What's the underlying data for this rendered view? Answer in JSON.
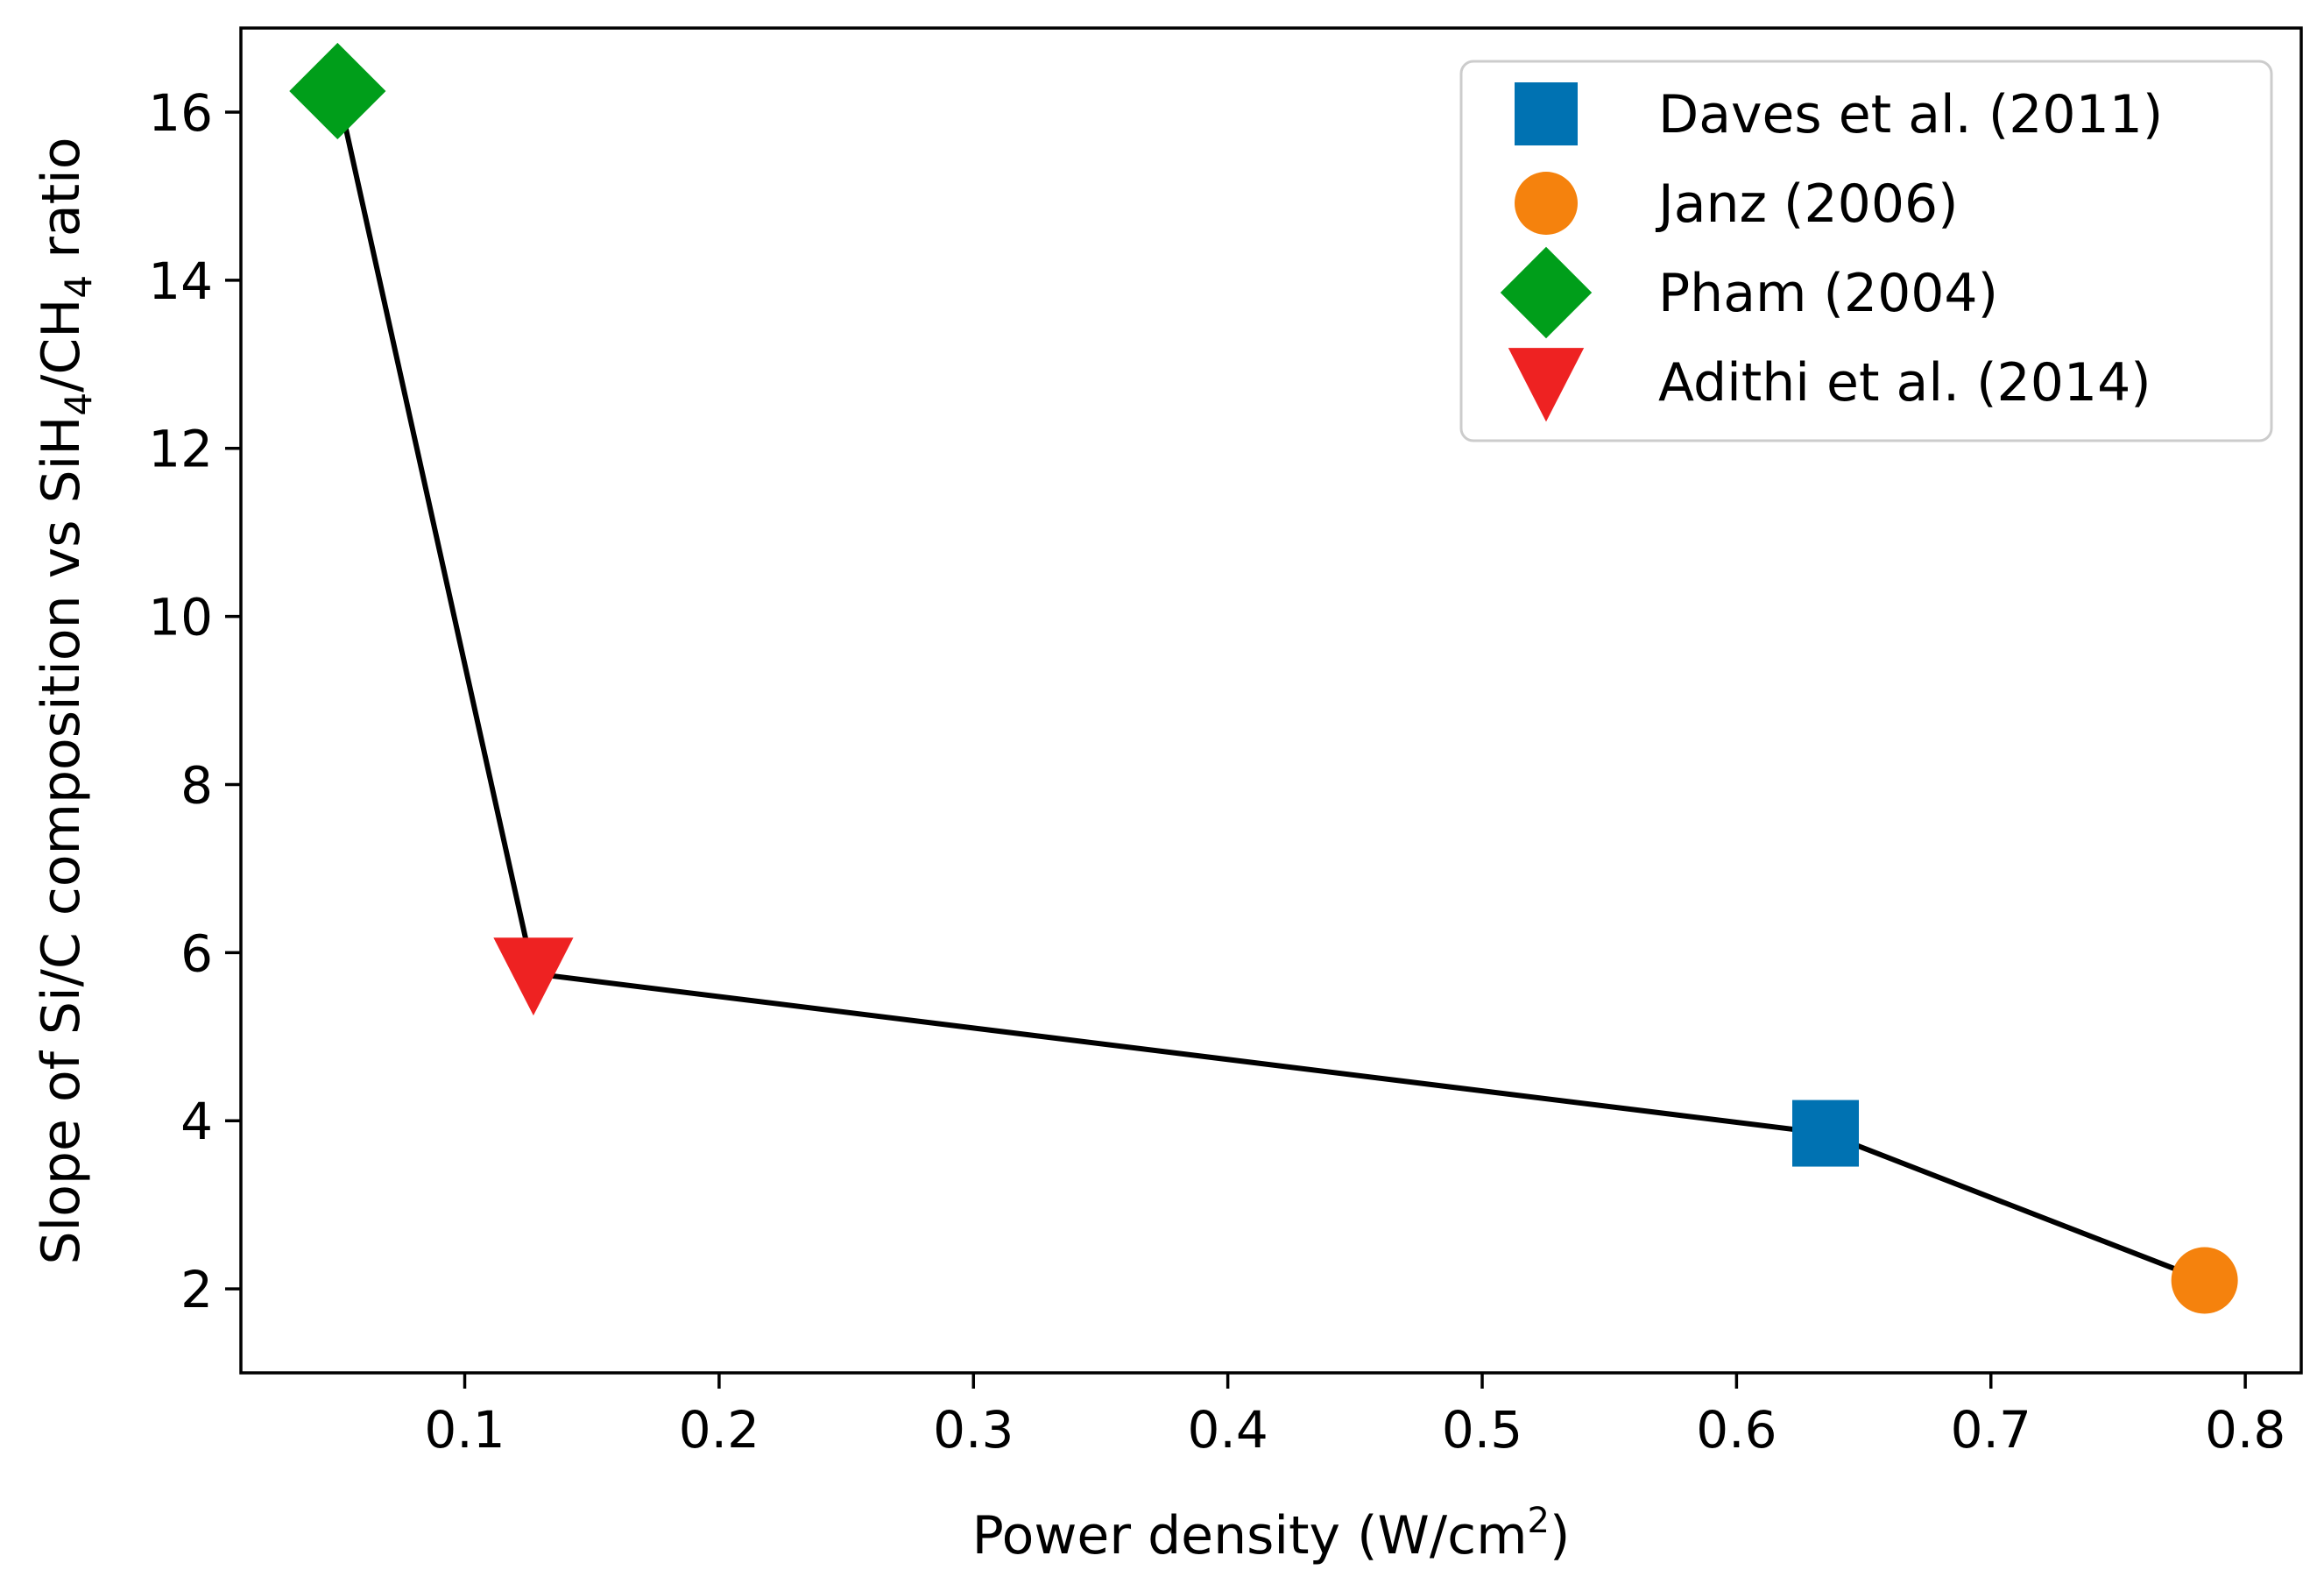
{
  "chart_data": {
    "type": "line",
    "xlabel": {
      "main": "Power density (W/cm",
      "sup": "2",
      "close": ")"
    },
    "ylabel": {
      "p1": "Slope of Si/C composition vs SiH",
      "s1": "4",
      "p2": "/CH",
      "s2": "4",
      "p3": " ratio"
    },
    "xlim": [
      0.012,
      0.822
    ],
    "ylim": [
      1.0,
      17.0
    ],
    "xticks": [
      0.1,
      0.2,
      0.3,
      0.4,
      0.5,
      0.6,
      0.7,
      0.8
    ],
    "xtick_labels": [
      "0.1",
      "0.2",
      "0.3",
      "0.4",
      "0.5",
      "0.6",
      "0.7",
      "0.8"
    ],
    "yticks": [
      2,
      4,
      6,
      8,
      10,
      12,
      14,
      16
    ],
    "ytick_labels": [
      "2",
      "4",
      "6",
      "8",
      "10",
      "12",
      "14",
      "16"
    ],
    "grid": false,
    "legend_position": "top-right",
    "line": {
      "color": "#000000",
      "x": [
        0.05,
        0.127,
        0.635,
        0.784
      ],
      "y": [
        16.25,
        5.75,
        3.85,
        2.1
      ]
    },
    "series": [
      {
        "name": "Daves et al. (2011)",
        "marker": "square",
        "color": "#0072b2",
        "x": 0.635,
        "y": 3.85
      },
      {
        "name": "Janz (2006)",
        "marker": "circle",
        "color": "#f5820d",
        "x": 0.784,
        "y": 2.1
      },
      {
        "name": "Pham (2004)",
        "marker": "diamond",
        "color": "#009e1a",
        "x": 0.05,
        "y": 16.25
      },
      {
        "name": "Adithi et al. (2014)",
        "marker": "triangle-down",
        "color": "#ee2222",
        "x": 0.127,
        "y": 5.75
      }
    ]
  }
}
